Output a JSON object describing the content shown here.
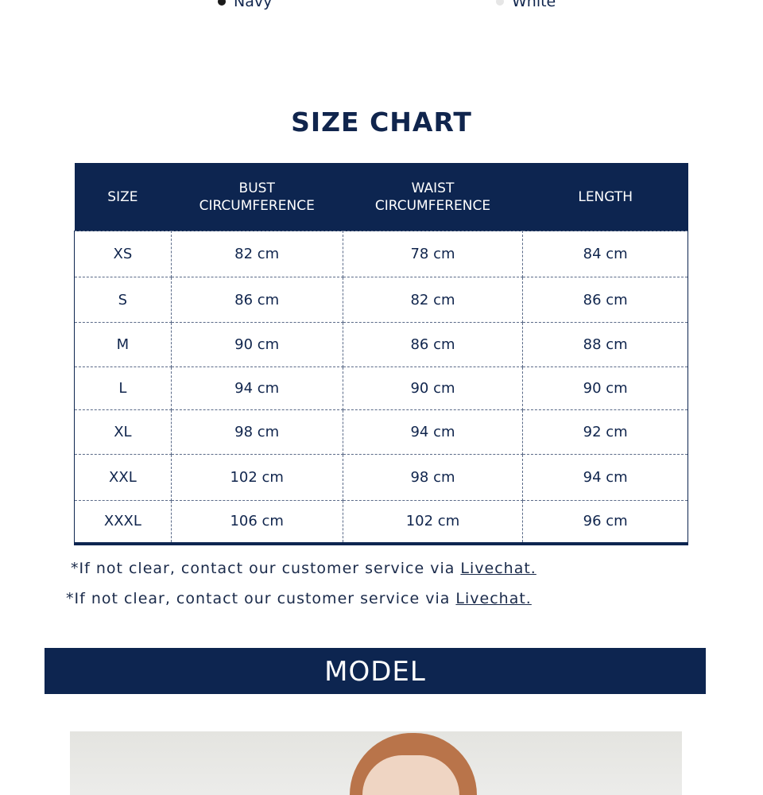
{
  "colors": [
    {
      "label": "Navy",
      "swatch": "#1a1a1a"
    },
    {
      "label": "White",
      "swatch": "#e6e6e6"
    }
  ],
  "title": "SIZE CHART",
  "table": {
    "headers": [
      [
        "SIZE",
        ""
      ],
      [
        "BUST",
        "CIRCUMFERENCE"
      ],
      [
        "WAIST",
        "CIRCUMFERENCE"
      ],
      [
        "LENGTH",
        ""
      ]
    ],
    "rows": [
      [
        "XS",
        "82 cm",
        "78 cm",
        "84 cm"
      ],
      [
        "S",
        "86 cm",
        "82 cm",
        "86 cm"
      ],
      [
        "M",
        "90 cm",
        "86 cm",
        "88 cm"
      ],
      [
        "L",
        "94 cm",
        "90 cm",
        "90 cm"
      ],
      [
        "XL",
        "98 cm",
        "94 cm",
        "92 cm"
      ],
      [
        "XXL",
        "102 cm",
        "98 cm",
        "94 cm"
      ],
      [
        "XXXL",
        "106 cm",
        "102 cm",
        "96 cm"
      ]
    ]
  },
  "notes": [
    {
      "text": "*If not clear, contact our customer service via ",
      "link": "Livechat."
    },
    {
      "text": "*If not clear, contact our customer service via ",
      "link": "Livechat."
    }
  ],
  "model_heading": "MODEL",
  "accent": "#0d2550"
}
